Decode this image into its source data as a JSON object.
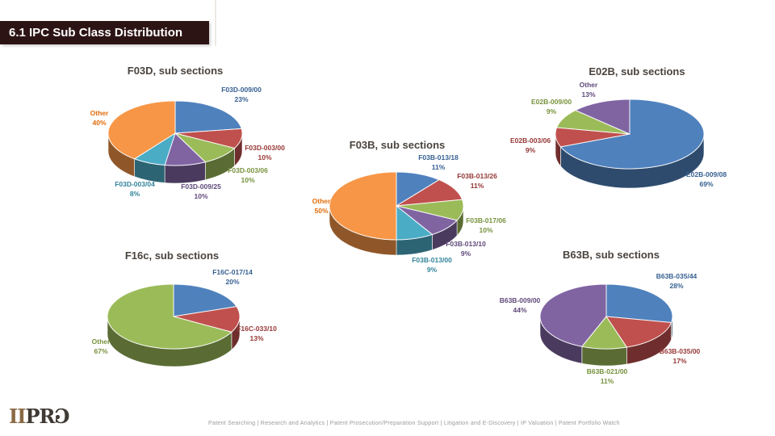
{
  "slide": {
    "title": "6.1 IPC Sub Class Distribution",
    "title_bar_color": "#2d1414",
    "footer": "Patent Searching | Research and Analytics | Patent Prosecution/Preparation Support | Litigation and E-Discovery | IP Valuation | Patent Portfolio Watch",
    "logo": {
      "ii": "II",
      "pr": "PR",
      "d": "Ɔ"
    }
  },
  "chart_data": [
    {
      "id": "f03d",
      "type": "pie",
      "title": "F03D, sub sections",
      "legend_position": "none",
      "labels": [
        "F03D-009/00",
        "F03D-003/00",
        "F03D-003/06",
        "F03D-009/25",
        "F03D-003/04",
        "Other"
      ],
      "values": [
        23,
        10,
        10,
        10,
        8,
        40
      ],
      "slice_colors": [
        "#4F81BD",
        "#C0504D",
        "#9BBB59",
        "#8064A2",
        "#4BACC6",
        "#F79646"
      ],
      "label_colors": [
        "#376092",
        "#953735",
        "#76923C",
        "#5F497A",
        "#31849B",
        "#E36C0A"
      ]
    },
    {
      "id": "e02b",
      "type": "pie",
      "title": "E02B, sub sections",
      "legend_position": "none",
      "labels": [
        "E02B-009/08",
        "E02B-003/06",
        "E02B-009/00",
        "Other"
      ],
      "values": [
        69,
        9,
        9,
        13
      ],
      "slice_colors": [
        "#4F81BD",
        "#C0504D",
        "#9BBB59",
        "#8064A2"
      ],
      "label_colors": [
        "#376092",
        "#953735",
        "#76923C",
        "#5F497A"
      ]
    },
    {
      "id": "f03b",
      "type": "pie",
      "title": "F03B, sub sections",
      "legend_position": "none",
      "labels": [
        "F03B-013/18",
        "F03B-013/26",
        "F03B-017/06",
        "F03B-013/10",
        "F03B-013/00",
        "Other"
      ],
      "values": [
        11,
        11,
        10,
        9,
        9,
        50
      ],
      "slice_colors": [
        "#4F81BD",
        "#C0504D",
        "#9BBB59",
        "#8064A2",
        "#4BACC6",
        "#F79646"
      ],
      "label_colors": [
        "#376092",
        "#953735",
        "#76923C",
        "#5F497A",
        "#31849B",
        "#E36C0A"
      ]
    },
    {
      "id": "f16c",
      "type": "pie",
      "title": "F16c, sub sections",
      "legend_position": "none",
      "labels": [
        "F16C-017/14",
        "F16C-033/10",
        "Other"
      ],
      "values": [
        20,
        13,
        67
      ],
      "slice_colors": [
        "#4F81BD",
        "#C0504D",
        "#9BBB59"
      ],
      "label_colors": [
        "#376092",
        "#953735",
        "#76923C"
      ]
    },
    {
      "id": "b63b",
      "type": "pie",
      "title": "B63B, sub sections",
      "legend_position": "none",
      "labels": [
        "B63B-035/44",
        "B63B-035/00",
        "B63B-021/00",
        "B63B-009/00"
      ],
      "values": [
        28,
        17,
        11,
        44
      ],
      "slice_colors": [
        "#4F81BD",
        "#C0504D",
        "#9BBB59",
        "#8064A2"
      ],
      "label_colors": [
        "#376092",
        "#953735",
        "#76923C",
        "#5F497A"
      ]
    }
  ]
}
